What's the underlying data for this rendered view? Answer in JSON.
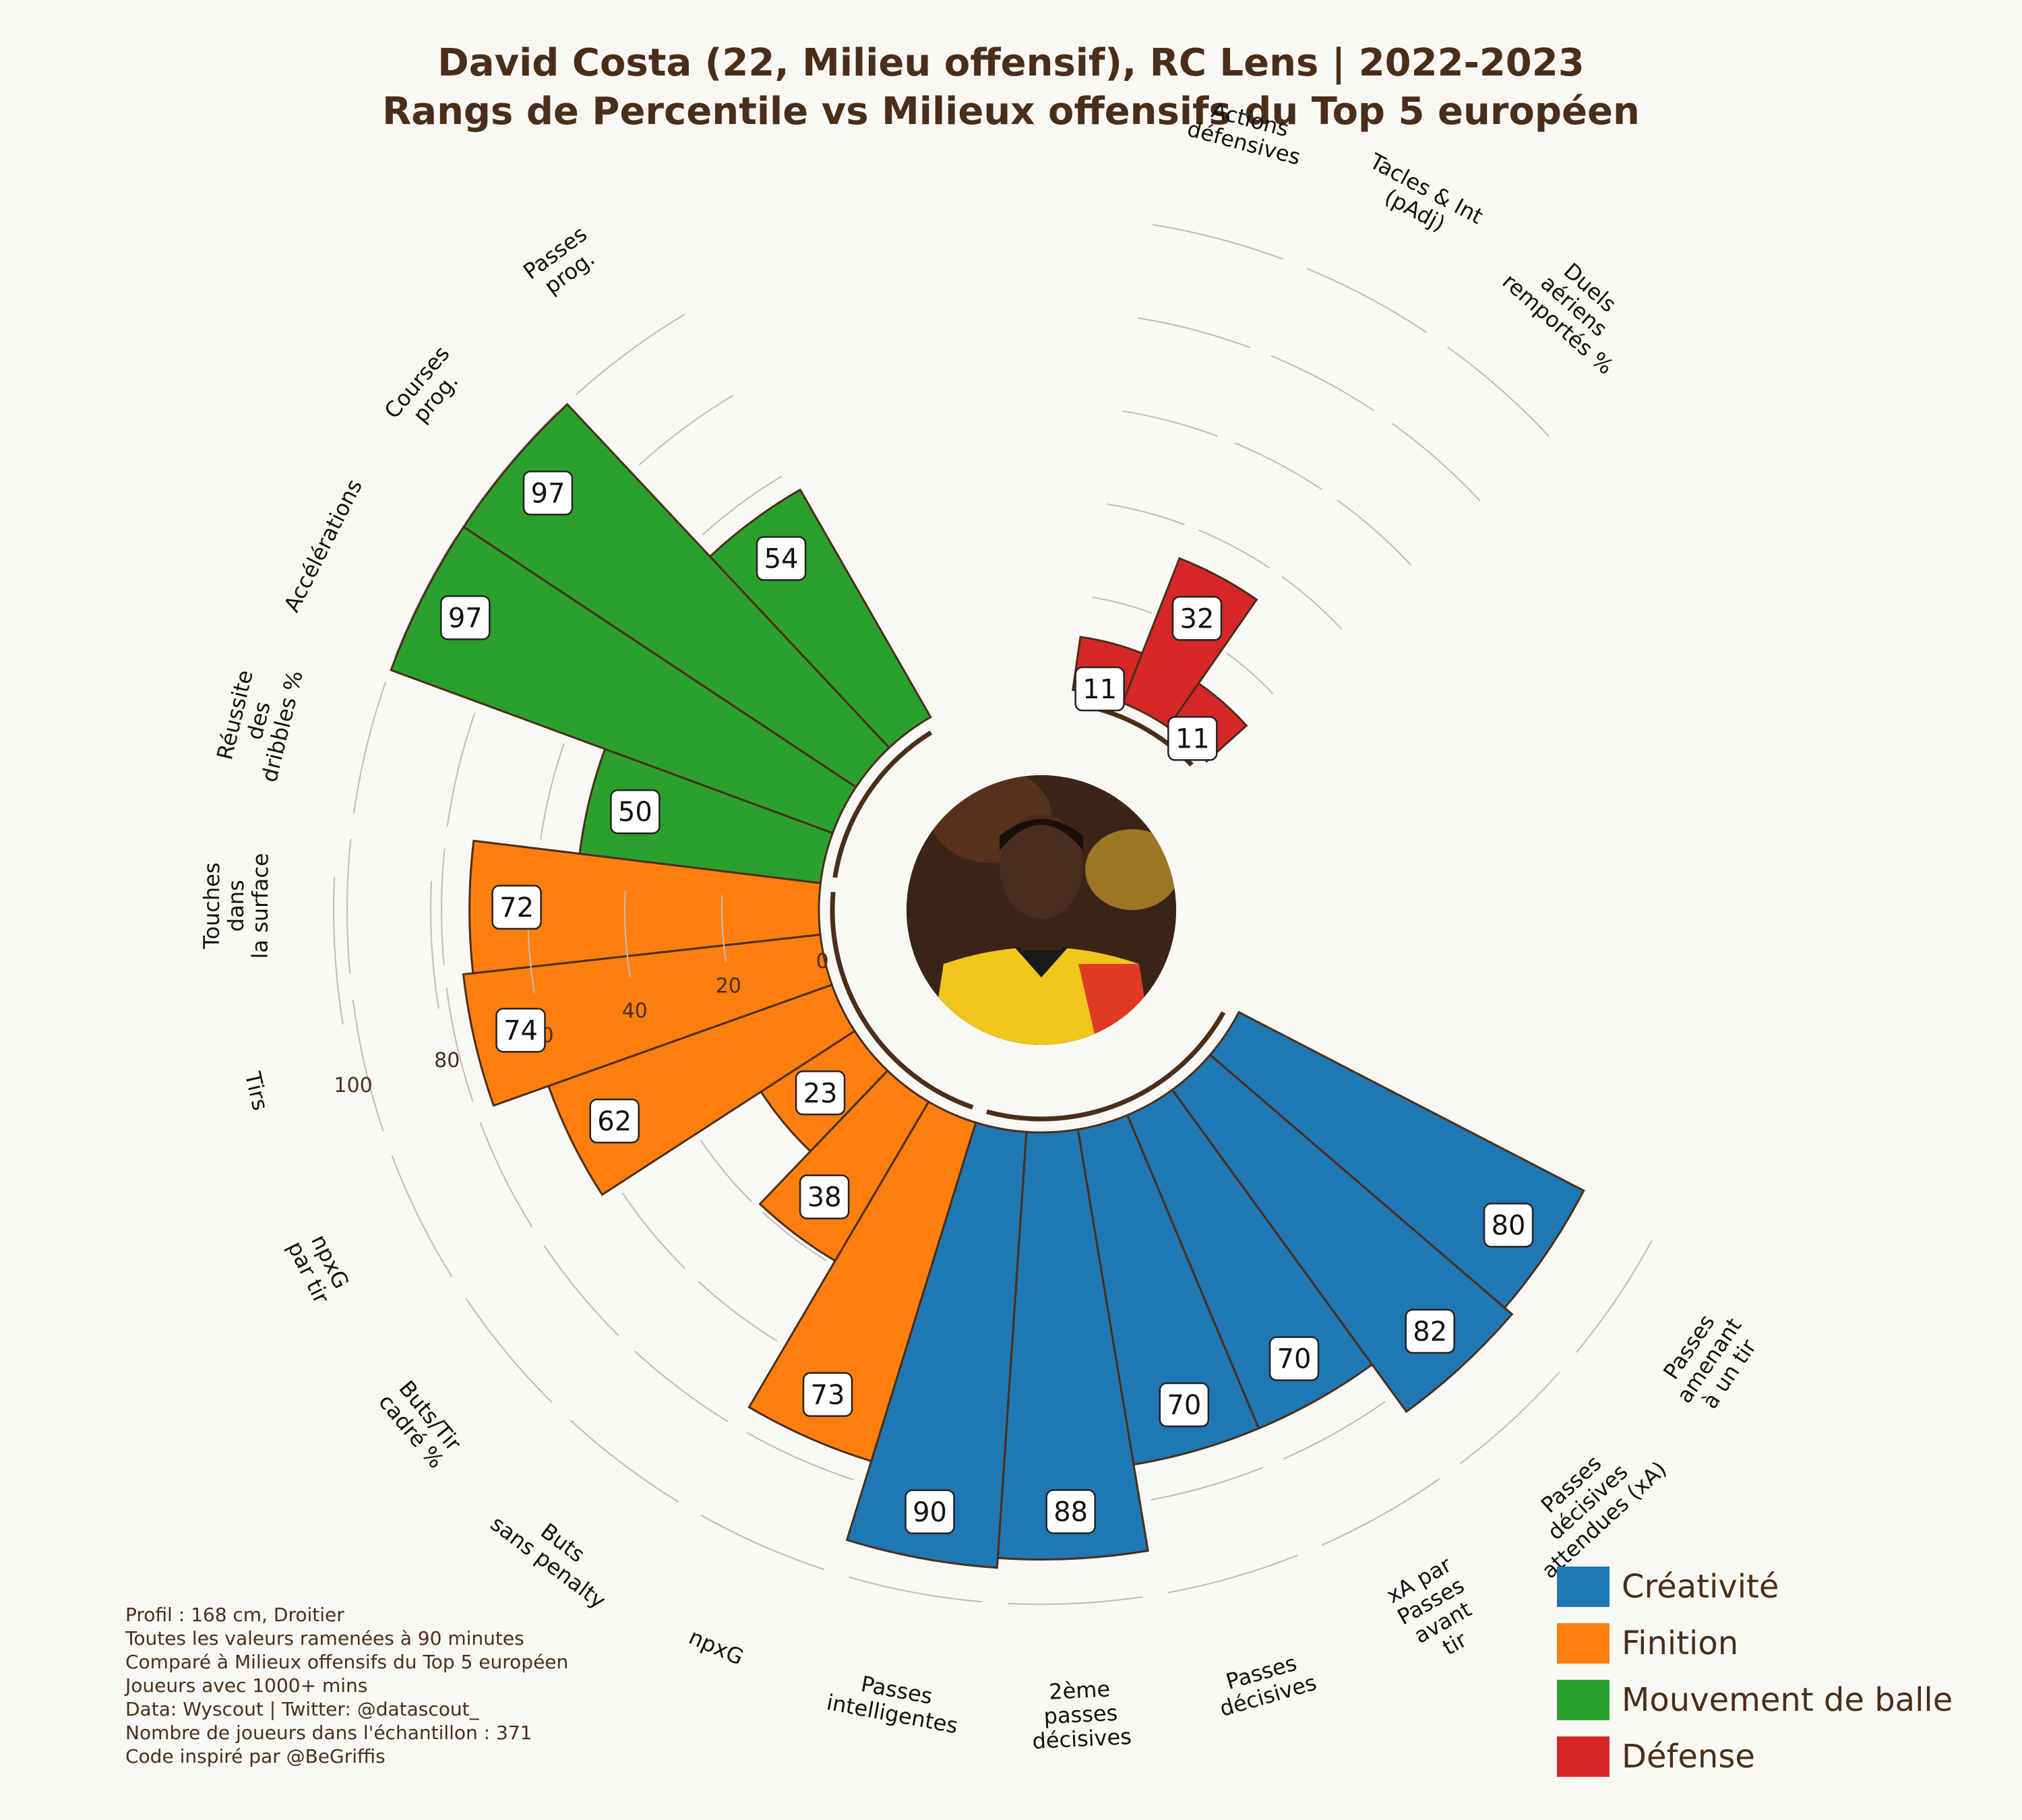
{
  "title": {
    "line1": "David Costa (22, Milieu offensif), RC Lens | 2022-2023",
    "line2": "Rangs de Percentile vs Milieux offensifs du Top 5 européen"
  },
  "player_photo": {
    "alt": "David Costa"
  },
  "footer": {
    "lines": [
      "Profil : 168 cm, Droitier",
      "Toutes les valeurs ramenées à 90 minutes",
      "Comparé à Milieux offensifs du Top 5 européen",
      "Joueurs avec 1000+ mins",
      "Data: Wyscout | Twitter: @datascout_",
      "Nombre de joueurs dans l'échantillon : 371",
      "Code inspiré par @BeGriffis"
    ]
  },
  "legend": [
    {
      "label": "Créativité",
      "color": "#1f77b4"
    },
    {
      "label": "Finition",
      "color": "#ff7f0e"
    },
    {
      "label": "Mouvement de balle",
      "color": "#2ca02c"
    },
    {
      "label": "Défense",
      "color": "#d62728"
    }
  ],
  "colors": {
    "background": "#f9f8f4",
    "text": "#4a2e1a",
    "bar_edge": "#4a2e1a",
    "grid": "#bdbdbd"
  },
  "chart_data": {
    "type": "bar",
    "subtype": "polar",
    "title": "David Costa (22, Milieu offensif), RC Lens | 2022-2023 / Rangs de Percentile vs Milieux offensifs du Top 5 européen",
    "rlim": [
      0,
      100
    ],
    "rticks": [
      "0",
      "20",
      "40",
      "60",
      "80",
      "100"
    ],
    "legend_position": "bottom-right",
    "grid": true,
    "categories": [
      "Passes amenant à un tir",
      "Passes décisives attendues (xA)",
      "xA par Passes avant tir",
      "Passes décisives",
      "2ème passes décisives",
      "Passes intelligentes",
      "npxG",
      "Buts sans penalty",
      "Buts/Tir cadré %",
      "npxG par tir",
      "Tirs",
      "Touches dans la surface",
      "Réussite des dribbles %",
      "Accélérations",
      "Courses prog.",
      "Passes prog.",
      "Actions défensives",
      "Tacles & Int (pAdj)",
      "Duels aériens remportés %"
    ],
    "category_labels": [
      [
        "Passes",
        "amenant",
        "à un tir"
      ],
      [
        "Passes",
        "décisives",
        "attendues (xA)"
      ],
      [
        "xA par",
        "Passes",
        "avant",
        "tir"
      ],
      [
        "Passes",
        "décisives"
      ],
      [
        "2ème",
        "passes",
        "décisives"
      ],
      [
        "Passes",
        "intelligentes"
      ],
      [
        "npxG"
      ],
      [
        "Buts",
        "sans penalty"
      ],
      [
        "Buts/Tir",
        "cadré %"
      ],
      [
        "npxG",
        "par tir"
      ],
      [
        "Tirs"
      ],
      [
        "Touches",
        "dans",
        "la surface"
      ],
      [
        "Réussite",
        "des",
        "dribbles %"
      ],
      [
        "Accélérations"
      ],
      [
        "Courses",
        "prog."
      ],
      [
        "Passes",
        "prog."
      ],
      [
        "Actions",
        "défensives"
      ],
      [
        "Tacles & Int",
        "(pAdj)"
      ],
      [
        "Duels",
        "aériens",
        "remportés %"
      ]
    ],
    "groups": [
      "Créativité",
      "Créativité",
      "Créativité",
      "Créativité",
      "Créativité",
      "Créativité",
      "Finition",
      "Finition",
      "Finition",
      "Finition",
      "Finition",
      "Finition",
      "Mouvement de balle",
      "Mouvement de balle",
      "Mouvement de balle",
      "Mouvement de balle",
      "Défense",
      "Défense",
      "Défense"
    ],
    "values": [
      80,
      82,
      70,
      70,
      88,
      90,
      73,
      38,
      23,
      62,
      74,
      72,
      50,
      97,
      97,
      54,
      11,
      32,
      11
    ]
  }
}
